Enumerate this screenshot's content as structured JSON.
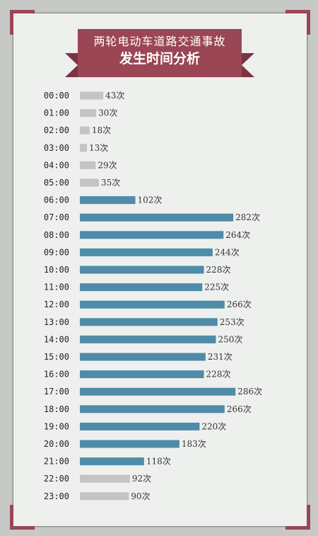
{
  "header": {
    "title": "两轮电动车道路交通事故",
    "subtitle": "发生时间分析"
  },
  "colors": {
    "accent": "#9a4654",
    "bar_day": "#4f8ca8",
    "bar_night": "#c4c4c4"
  },
  "chart_data": {
    "type": "bar",
    "orientation": "horizontal",
    "title": "两轮电动车道路交通事故发生时间分析",
    "categories": [
      "00:00",
      "01:00",
      "02:00",
      "03:00",
      "04:00",
      "05:00",
      "06:00",
      "07:00",
      "08:00",
      "09:00",
      "10:00",
      "11:00",
      "12:00",
      "13:00",
      "14:00",
      "15:00",
      "16:00",
      "17:00",
      "18:00",
      "19:00",
      "20:00",
      "21:00",
      "22:00",
      "23:00"
    ],
    "values": [
      43,
      30,
      18,
      13,
      29,
      35,
      102,
      282,
      264,
      244,
      228,
      225,
      266,
      253,
      250,
      231,
      228,
      286,
      266,
      220,
      183,
      118,
      92,
      90
    ],
    "data_labels": [
      "43次",
      "30次",
      "18次",
      "13次",
      "29次",
      "35次",
      "102次",
      "282次",
      "264次",
      "244次",
      "228次",
      "225次",
      "266次",
      "253次",
      "250次",
      "231次",
      "228次",
      "286次",
      "266次",
      "220次",
      "183次",
      "118次",
      "92次",
      "90次"
    ],
    "highlighted": [
      false,
      false,
      false,
      false,
      false,
      false,
      true,
      true,
      true,
      true,
      true,
      true,
      true,
      true,
      true,
      true,
      true,
      true,
      true,
      true,
      true,
      true,
      false,
      false
    ],
    "value_unit": "次",
    "xlim": [
      0,
      300
    ],
    "grid": false
  }
}
